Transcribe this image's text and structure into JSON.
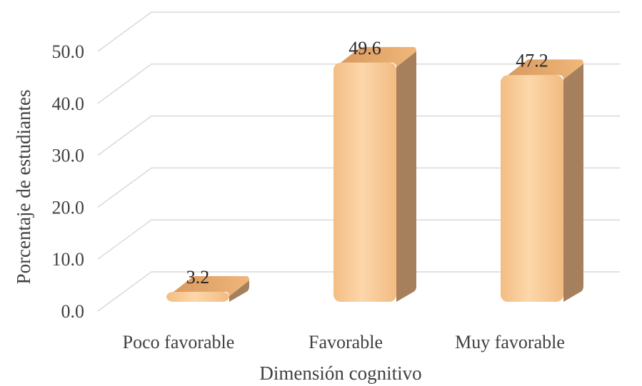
{
  "chart_data": {
    "type": "bar",
    "categories": [
      "Poco favorable",
      "Favorable",
      "Muy favorable"
    ],
    "values": [
      3.2,
      49.6,
      47.2
    ],
    "data_labels": [
      "3.2",
      "49.6",
      "47.2"
    ],
    "title": "",
    "xlabel": "Dimensión cognitivo",
    "ylabel": "Porcentaje de estudiantes",
    "ylim": [
      0,
      50
    ],
    "yticks": [
      "0.0",
      "10.0",
      "20.0",
      "30.0",
      "40.0",
      "50.0"
    ],
    "grid": true,
    "legend": "none",
    "style": "3d-column",
    "colors": {
      "bar_front": "#f9c992",
      "bar_side": "#a67f5c",
      "bar_top": "#e8ae72",
      "grid": "#d9d9d9",
      "text": "#404040"
    }
  }
}
